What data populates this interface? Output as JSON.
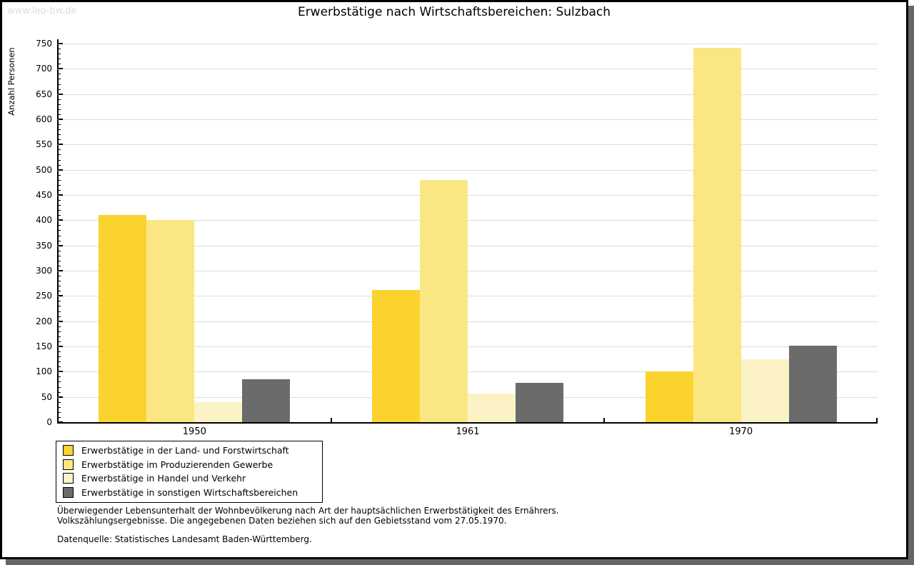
{
  "watermark": "www.leo-bw.de",
  "title": "Erwerbstätige nach Wirtschaftsbereichen: Sulzbach",
  "chart_data": {
    "type": "bar",
    "title": "Erwerbstätige nach Wirtschaftsbereichen: Sulzbach",
    "xlabel": "",
    "ylabel": "Anzahl Personen",
    "ylim": [
      0,
      750
    ],
    "ytick_step": 50,
    "minor_tick_step": 10,
    "grid": true,
    "legend_position": "bottom-left",
    "categories": [
      "1950",
      "1961",
      "1970"
    ],
    "series": [
      {
        "name": "Erwerbstätige in der Land- und Forstwirtschaft",
        "color": "#FBD32E",
        "values": [
          410,
          262,
          100
        ]
      },
      {
        "name": "Erwerbstätige im Produzierenden Gewerbe",
        "color": "#FAE784",
        "values": [
          400,
          480,
          741
        ]
      },
      {
        "name": "Erwerbstätige in Handel und Verkehr",
        "color": "#FBF3C5",
        "values": [
          40,
          57,
          125
        ]
      },
      {
        "name": "Erwerbstätige in sonstigen Wirtschaftsbereichen",
        "color": "#6B6B6B",
        "values": [
          85,
          78,
          152
        ]
      }
    ]
  },
  "footer": {
    "line1": "Überwiegender Lebensunterhalt der Wohnbevölkerung nach Art der hauptsächlichen Erwerbstätigkeit des Ernährers.",
    "line2": "Volkszählungsergebnisse. Die angegebenen Daten beziehen sich auf den Gebietsstand vom 27.05.1970.",
    "source": "Datenquelle: Statistisches Landesamt Baden-Württemberg."
  }
}
